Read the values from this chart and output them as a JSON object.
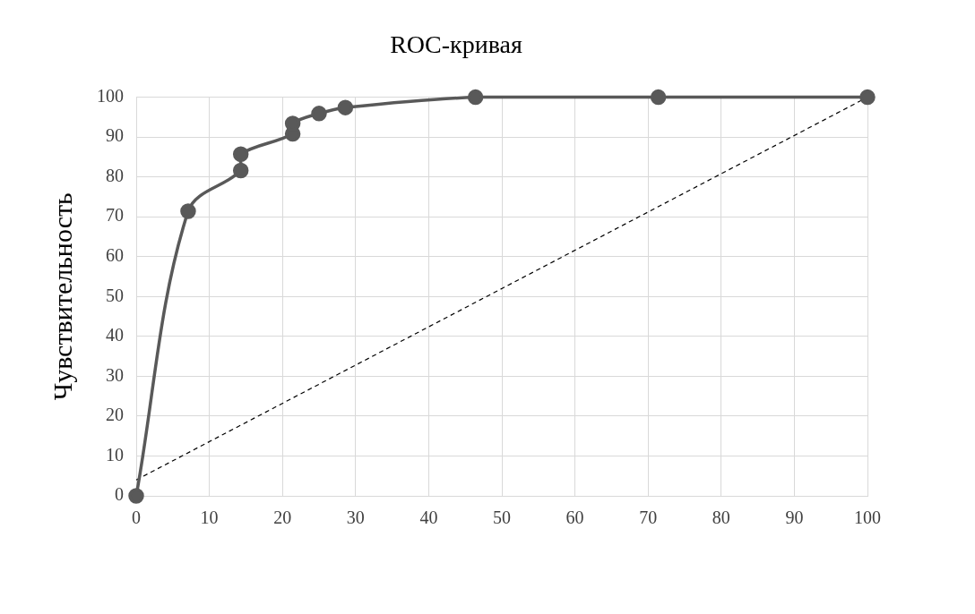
{
  "chart_data": {
    "type": "line",
    "title": "ROC-кривая",
    "ylabel": "Чувствительность",
    "xlim": [
      0,
      100
    ],
    "xticks": [
      0,
      10,
      20,
      30,
      40,
      50,
      60,
      70,
      80,
      90,
      100
    ],
    "ylim": [
      0,
      100
    ],
    "yticks": [
      0,
      10,
      20,
      30,
      40,
      50,
      60,
      70,
      80,
      90,
      100
    ],
    "grid": true,
    "legend": false,
    "series": [
      {
        "color": "#595959",
        "marker": "circle",
        "line_style": "solid",
        "x": [
          0,
          7.1,
          14.3,
          14.3,
          21.4,
          21.4,
          25,
          28.6,
          46.4,
          71.4,
          100
        ],
        "values": [
          0,
          71.4,
          81.6,
          85.7,
          90.8,
          93.4,
          95.9,
          97.4,
          100,
          100,
          100
        ]
      },
      {
        "color": "#000000",
        "marker": "none",
        "line_style": "dashed",
        "x": [
          0,
          100
        ],
        "values": [
          4,
          100
        ]
      }
    ]
  }
}
